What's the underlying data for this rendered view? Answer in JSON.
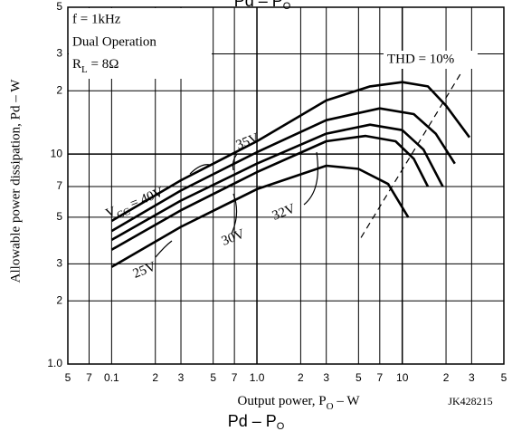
{
  "chart_data": {
    "type": "line",
    "title": {
      "main": "Pd – P",
      "sub": "O"
    },
    "x_label": {
      "main": "Output power, P",
      "sub": "O",
      "rest": " – W"
    },
    "y_label": "Allowable power dissipation, Pd – W",
    "code": "JK428215",
    "conditions": [
      "f = 1kHz",
      "Dual Operation",
      {
        "main": "R",
        "sub": "L",
        "rest": " = 8Ω"
      }
    ],
    "log_x": true,
    "log_y": true,
    "grid": true,
    "xlim": [
      0.05,
      50
    ],
    "ylim": [
      1,
      50
    ],
    "xticks": [
      {
        "value": 0.05,
        "label": "5"
      },
      {
        "value": 0.07,
        "label": "7"
      },
      0.1,
      {
        "value": 0.2,
        "label": "2"
      },
      {
        "value": 0.3,
        "label": "3"
      },
      {
        "value": 0.5,
        "label": "5"
      },
      {
        "value": 0.7,
        "label": "7"
      },
      {
        "value": 1,
        "label": "1.0"
      },
      2,
      3,
      5,
      7,
      10,
      {
        "value": 20,
        "label": "2"
      },
      {
        "value": 30,
        "label": "3"
      },
      {
        "value": 50,
        "label": "5"
      }
    ],
    "yticks": [
      {
        "value": 1,
        "label": "1.0"
      },
      2,
      3,
      5,
      7,
      10,
      {
        "value": 20,
        "label": "2"
      },
      {
        "value": 30,
        "label": "3"
      },
      {
        "value": 50,
        "label": "5"
      }
    ],
    "series": [
      {
        "name": {
          "main": "V",
          "sub": "CC",
          "rest": " = 40V"
        },
        "color": "#000000",
        "x": [
          0.1,
          0.3,
          1,
          3,
          6,
          10,
          15,
          20,
          29
        ],
        "values": [
          4.8,
          7.5,
          11.5,
          18,
          21,
          22,
          21,
          17,
          12
        ]
      },
      {
        "name": "35V",
        "color": "#000000",
        "x": [
          0.1,
          0.3,
          1,
          3,
          7,
          12,
          17,
          23
        ],
        "values": [
          4.3,
          6.7,
          10.2,
          14.5,
          16.5,
          15.5,
          12.5,
          9
        ]
      },
      {
        "name": "32V",
        "color": "#000000",
        "x": [
          0.1,
          0.3,
          1,
          3,
          6,
          10,
          14,
          19
        ],
        "values": [
          3.9,
          6,
          9,
          12.5,
          13.8,
          13,
          10.5,
          7
        ]
      },
      {
        "name": "30V",
        "color": "#000000",
        "x": [
          0.1,
          0.3,
          1,
          3,
          5.6,
          9,
          12,
          15
        ],
        "values": [
          3.5,
          5.4,
          8.2,
          11.5,
          12.2,
          11.5,
          9.5,
          7
        ]
      },
      {
        "name": "25V",
        "color": "#000000",
        "x": [
          0.1,
          0.3,
          1,
          3,
          5,
          8,
          11
        ],
        "values": [
          2.9,
          4.5,
          6.8,
          8.8,
          8.5,
          7.2,
          5
        ]
      }
    ],
    "thd_line": {
      "label": "THD = 10%",
      "x": [
        5.2,
        26
      ],
      "values": [
        4,
        25
      ]
    }
  }
}
